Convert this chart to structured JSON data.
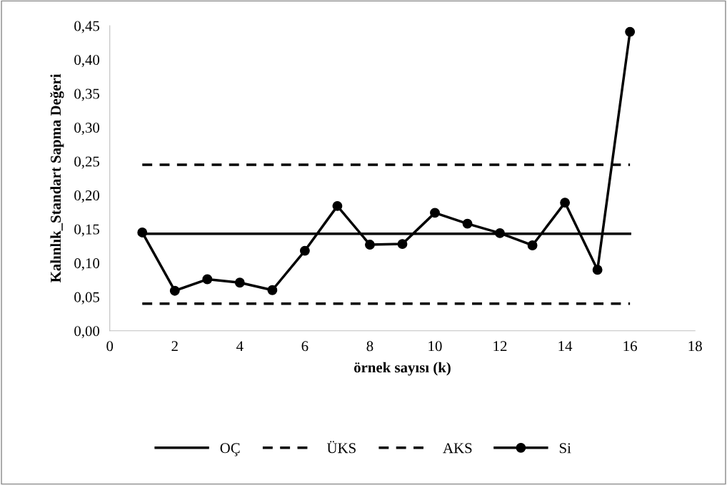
{
  "chart_data": {
    "type": "line",
    "xlabel": "örnek sayısı (k)",
    "ylabel": "Kalınlık_Standart Sapma Değeri",
    "xlim": [
      0,
      18
    ],
    "xticks": [
      0,
      2,
      4,
      6,
      8,
      10,
      12,
      14,
      16,
      18
    ],
    "ylim": [
      0,
      0.45
    ],
    "yticks": [
      {
        "value": 0,
        "label": "0,00"
      },
      {
        "value": 0.05,
        "label": "0,05"
      },
      {
        "value": 0.1,
        "label": "0,10"
      },
      {
        "value": 0.15,
        "label": "0,15"
      },
      {
        "value": 0.2,
        "label": "0,20"
      },
      {
        "value": 0.25,
        "label": "0,25"
      },
      {
        "value": 0.3,
        "label": "0,30"
      },
      {
        "value": 0.35,
        "label": "0,35"
      },
      {
        "value": 0.4,
        "label": "0,40"
      },
      {
        "value": 0.45,
        "label": "0,45"
      }
    ],
    "grid": false,
    "legend": "bottom",
    "series": [
      {
        "name": "OÇ",
        "color": "#000000",
        "line_style": "solid",
        "marker": "none",
        "x": [
          1,
          16
        ],
        "values": [
          0.143,
          0.143
        ]
      },
      {
        "name": "ÜKS",
        "color": "#000000",
        "line_style": "dashed",
        "marker": "none",
        "x": [
          1,
          16
        ],
        "values": [
          0.245,
          0.245
        ]
      },
      {
        "name": "AKS",
        "color": "#000000",
        "line_style": "dashed",
        "marker": "none",
        "x": [
          1,
          16
        ],
        "values": [
          0.04,
          0.04
        ]
      },
      {
        "name": "Si",
        "color": "#000000",
        "line_style": "solid",
        "marker": "circle",
        "x": [
          1,
          2,
          3,
          4,
          5,
          6,
          7,
          8,
          9,
          10,
          11,
          12,
          13,
          14,
          15,
          16
        ],
        "values": [
          0.145,
          0.059,
          0.076,
          0.071,
          0.06,
          0.118,
          0.184,
          0.127,
          0.128,
          0.174,
          0.158,
          0.144,
          0.126,
          0.189,
          0.09,
          0.441
        ]
      }
    ]
  }
}
